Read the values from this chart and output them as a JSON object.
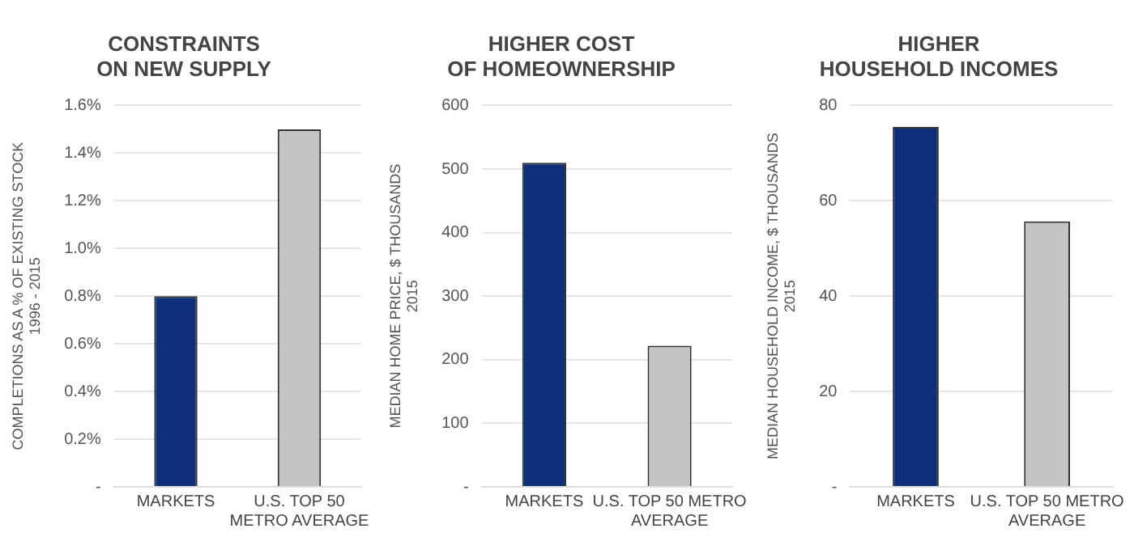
{
  "chart_data": [
    {
      "type": "bar",
      "title": "CONSTRAINTS\nON NEW SUPPLY",
      "ylabel": "COMPLETIONS AS A % OF EXISTING STOCK\n1996 - 2015",
      "categories": [
        "MARKETS",
        "U.S. TOP 50\nMETRO AVERAGE"
      ],
      "values": [
        0.8,
        1.5
      ],
      "colors": [
        "#0d2f7a",
        "#c4c4c4"
      ],
      "ylim": [
        0,
        1.6
      ],
      "yticks": [
        {
          "value": 0,
          "label": "-"
        },
        {
          "value": 0.2,
          "label": "0.2%"
        },
        {
          "value": 0.4,
          "label": "0.4%"
        },
        {
          "value": 0.6,
          "label": "0.6%"
        },
        {
          "value": 0.8,
          "label": "0.8%"
        },
        {
          "value": 1.0,
          "label": "1.0%"
        },
        {
          "value": 1.2,
          "label": "1.2%"
        },
        {
          "value": 1.4,
          "label": "1.4%"
        },
        {
          "value": 1.6,
          "label": "1.6%"
        }
      ],
      "grid": "y",
      "legend": false
    },
    {
      "type": "bar",
      "title": "HIGHER COST\nOF HOMEOWNERSHIP",
      "ylabel": "MEDIAN HOME PRICE, $ THOUSANDS\n2015",
      "categories": [
        "MARKETS",
        "U.S. TOP 50 METRO\nAVERAGE"
      ],
      "values": [
        510,
        222
      ],
      "colors": [
        "#0d2f7a",
        "#c4c4c4"
      ],
      "ylim": [
        0,
        600
      ],
      "yticks": [
        {
          "value": 0,
          "label": "-"
        },
        100,
        200,
        300,
        400,
        500,
        600
      ],
      "grid": "y",
      "legend": false
    },
    {
      "type": "bar",
      "title": "HIGHER\nHOUSEHOLD INCOMES",
      "ylabel": "MEDIAN HOUSEHOLD INCOME, $ THOUSANDS\n2015",
      "categories": [
        "MARKETS",
        "U.S. TOP 50 METRO\nAVERAGE"
      ],
      "values": [
        75.5,
        55.7
      ],
      "colors": [
        "#0d2f7a",
        "#c4c4c4"
      ],
      "ylim": [
        0,
        80
      ],
      "yticks": [
        {
          "value": 0,
          "label": "-"
        },
        20,
        40,
        60,
        80
      ],
      "grid": "y",
      "legend": false
    }
  ]
}
